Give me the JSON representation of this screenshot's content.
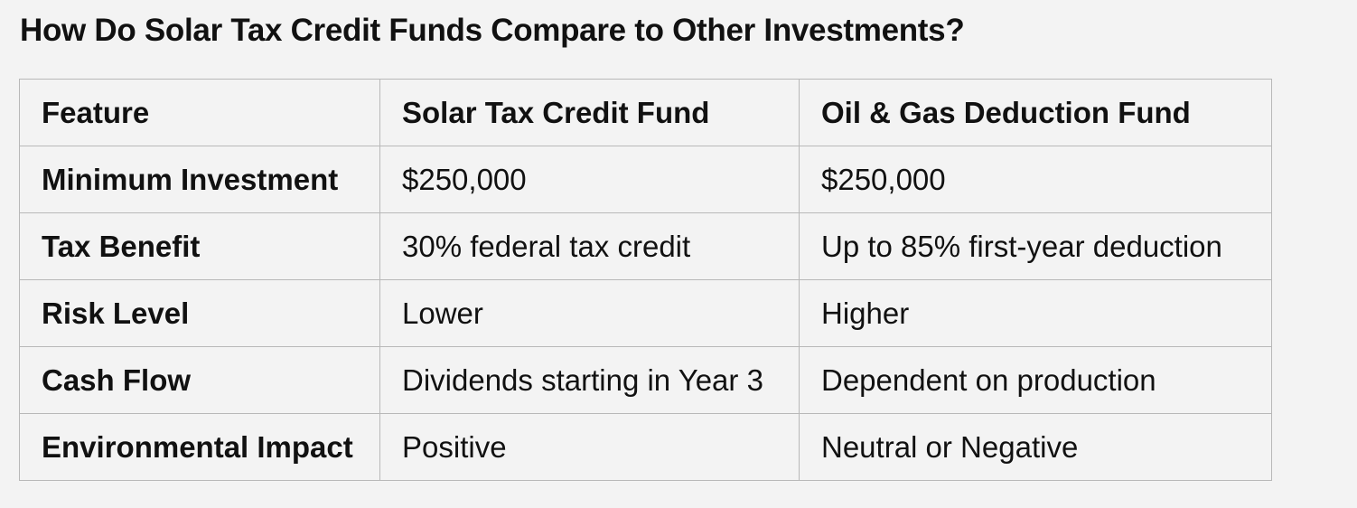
{
  "title": "How Do Solar Tax Credit Funds Compare to Other Investments?",
  "table": {
    "header": [
      "Feature",
      "Solar Tax Credit Fund",
      "Oil & Gas Deduction Fund"
    ],
    "rows": [
      [
        "Minimum Investment",
        "$250,000",
        "$250,000"
      ],
      [
        "Tax Benefit",
        "30% federal tax credit",
        "Up to 85% first-year deduction"
      ],
      [
        "Risk Level",
        "Lower",
        "Higher"
      ],
      [
        "Cash Flow",
        "Dividends starting in Year 3",
        "Dependent on production"
      ],
      [
        "Environmental Impact",
        "Positive",
        "Neutral or Negative"
      ]
    ]
  }
}
